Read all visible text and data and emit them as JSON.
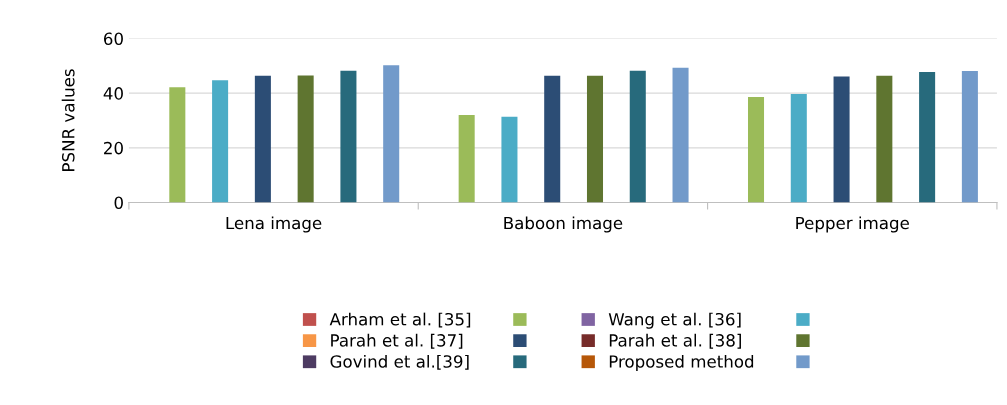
{
  "chart_data": {
    "type": "bar",
    "ylabel": "PSNR values",
    "categories": [
      "Lena image",
      "Baboon image",
      "Pepper image"
    ],
    "series": [
      {
        "name": "Arham et al. [35]",
        "color": "#c0504d",
        "values": [
          null,
          null,
          null
        ]
      },
      {
        "color": "#9bbb59",
        "values": [
          42.2,
          32,
          38.6
        ]
      },
      {
        "name": "Wang et al. [36]",
        "color": "#8064a2",
        "values": [
          null,
          null,
          null
        ]
      },
      {
        "color": "#4bacc6",
        "values": [
          44.7,
          31.4,
          39.7
        ]
      },
      {
        "name": "Parah et al. [37]",
        "color": "#f79646",
        "values": [
          null,
          null,
          null
        ]
      },
      {
        "color": "#2c4d75",
        "values": [
          46.4,
          46.4,
          46.1
        ]
      },
      {
        "name": "Parah et al. [38]",
        "color": "#772c2a",
        "values": [
          null,
          null,
          null
        ]
      },
      {
        "color": "#5f7530",
        "values": [
          46.5,
          46.4,
          46.4
        ]
      },
      {
        "name": "Govind et al.[39]",
        "color": "#4d3b62",
        "values": [
          null,
          null,
          null
        ]
      },
      {
        "color": "#276a7c",
        "values": [
          48.2,
          48.2,
          47.7
        ]
      },
      {
        "name": "Proposed method",
        "color": "#b65708",
        "values": [
          null,
          null,
          null
        ]
      },
      {
        "color": "#729aca",
        "values": [
          50.2,
          49.3,
          48.1
        ]
      }
    ],
    "ylim": [
      0,
      60
    ],
    "yticks": [
      0,
      20,
      40,
      60
    ],
    "grid": "y",
    "legend": "bottom"
  }
}
